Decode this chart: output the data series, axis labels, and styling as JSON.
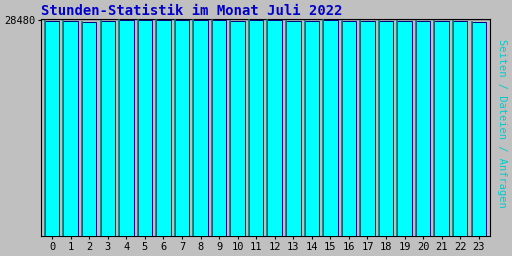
{
  "title": "Stunden-Statistik im Monat Juli 2022",
  "title_color": "#0000cc",
  "ylabel": "Seiten / Dateien / Anfragen",
  "ylabel_color": "#00cccc",
  "background_color": "#c0c0c0",
  "plot_bg_color": "#c0c0c0",
  "bar_fill_color": "#00ffff",
  "bar_edge_color": "#000080",
  "bar_left_edge_color": "#008080",
  "ytick_label": "28480",
  "ytick_value": 28480,
  "categories": [
    0,
    1,
    2,
    3,
    4,
    5,
    6,
    7,
    8,
    9,
    10,
    11,
    12,
    13,
    14,
    15,
    16,
    17,
    18,
    19,
    20,
    21,
    22,
    23
  ],
  "values": [
    28350,
    28280,
    28200,
    28370,
    28420,
    28440,
    28430,
    28440,
    28460,
    28480,
    28340,
    28430,
    28420,
    28310,
    28290,
    28420,
    28380,
    28370,
    28370,
    28300,
    28310,
    28340,
    28350,
    28270
  ],
  "ylim_min": 0,
  "ylim_max": 28560,
  "font_family": "monospace",
  "title_fontsize": 10,
  "tick_fontsize": 7.5,
  "ylabel_fontsize": 7.5,
  "bar_width": 0.78
}
